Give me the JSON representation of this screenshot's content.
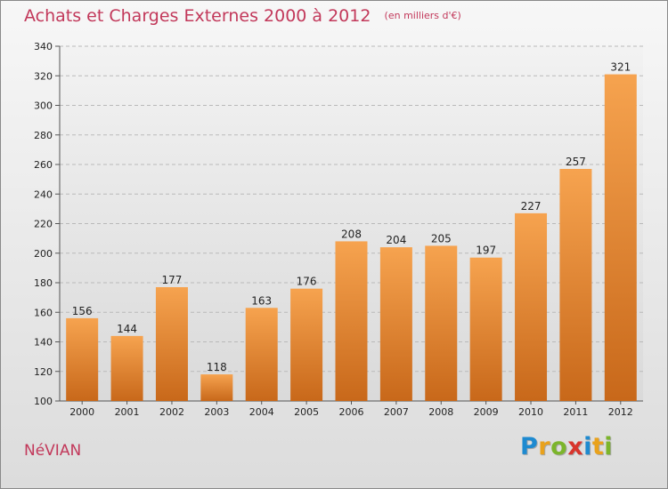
{
  "header": {
    "title": "Achats et Charges Externes 2000 à 2012",
    "subtitle": "(en milliers d'€)"
  },
  "footer": {
    "commune": "NéVIAN",
    "logo_letters": [
      {
        "char": "P",
        "color": "#1e8ad0"
      },
      {
        "char": "r",
        "color": "#e9a21c"
      },
      {
        "char": "o",
        "color": "#7cb52b"
      },
      {
        "char": "x",
        "color": "#d8342c"
      },
      {
        "char": "i",
        "color": "#1e8ad0"
      },
      {
        "char": "t",
        "color": "#e9a21c"
      },
      {
        "char": "i",
        "color": "#7cb52b"
      }
    ]
  },
  "colors": {
    "bar_light": "#f6a34f",
    "bar_dark": "#c8681a",
    "text_accent": "#c2385a"
  },
  "chart_data": {
    "type": "bar",
    "title": "Achats et Charges Externes 2000 à 2012",
    "subtitle": "(en milliers d'€)",
    "categories": [
      "2000",
      "2001",
      "2002",
      "2003",
      "2004",
      "2005",
      "2006",
      "2007",
      "2008",
      "2009",
      "2010",
      "2011",
      "2012"
    ],
    "values": [
      156,
      144,
      177,
      118,
      163,
      176,
      208,
      204,
      205,
      197,
      227,
      257,
      321
    ],
    "ylim": [
      100,
      340
    ],
    "yticks": [
      100,
      120,
      140,
      160,
      180,
      200,
      220,
      240,
      260,
      280,
      300,
      320,
      340
    ],
    "grid": true,
    "xlabel": "",
    "ylabel": ""
  }
}
